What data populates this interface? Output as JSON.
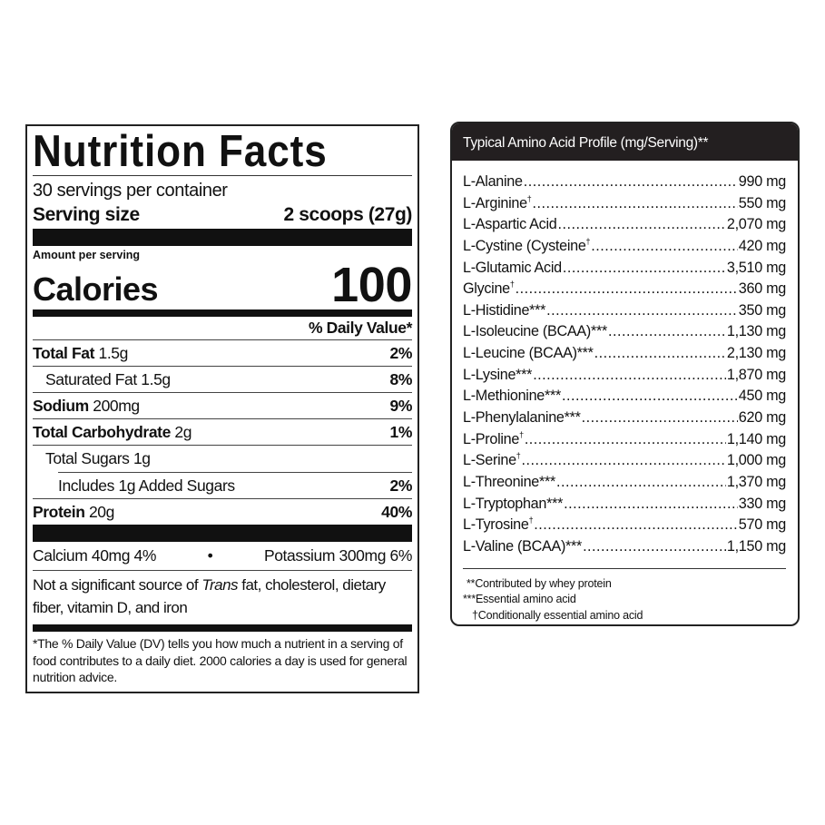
{
  "nutrition": {
    "title": "Nutrition Facts",
    "servings": "30 servings per container",
    "serving_size_label": "Serving size",
    "serving_size_value": "2 scoops (27g)",
    "amount_per_serving": "Amount per serving",
    "calories_label": "Calories",
    "calories_value": "100",
    "dv_header": "% Daily Value*",
    "rows": [
      {
        "name": "Total Fat",
        "amount": "1.5g",
        "dv": "2%"
      },
      {
        "name": "Saturated Fat 1.5g",
        "amount": "",
        "dv": "8%"
      },
      {
        "name": "Sodium",
        "amount": "200mg",
        "dv": "9%"
      },
      {
        "name": "Total Carbohydrate",
        "amount": "2g",
        "dv": "1%"
      },
      {
        "name": "Total Sugars 1g",
        "amount": "",
        "dv": ""
      },
      {
        "name": "Includes 1g Added Sugars",
        "amount": "",
        "dv": "2%"
      },
      {
        "name": "Protein",
        "amount": "20g",
        "dv": "40%"
      }
    ],
    "calcium": "Calcium 40mg 4%",
    "bullet": "•",
    "potassium": "Potassium 300mg 6%",
    "not_significant_pre": "Not a significant source of ",
    "not_significant_trans": "Trans",
    "not_significant_post": " fat, cholesterol, dietary fiber, vitamin D, and iron",
    "footnote": "*The % Daily Value (DV) tells you how much a nutrient in a serving of food contributes to a daily diet. 2000 calories a day is used for general nutrition advice."
  },
  "amino": {
    "title": "Typical Amino Acid Profile (mg/Serving)**",
    "items": [
      {
        "name": "L-Alanine",
        "mark": "",
        "value": "990 mg"
      },
      {
        "name": "L-Arginine",
        "mark": "†",
        "value": "550 mg"
      },
      {
        "name": "L-Aspartic Acid",
        "mark": "",
        "value": "2,070 mg"
      },
      {
        "name": "L-Cystine (Cysteine",
        "mark": "†",
        "value": "420 mg"
      },
      {
        "name": "L-Glutamic Acid",
        "mark": "",
        "value": "3,510 mg"
      },
      {
        "name": "Glycine",
        "mark": "†",
        "value": "360 mg"
      },
      {
        "name": "L-Histidine***",
        "mark": "",
        "value": "350 mg"
      },
      {
        "name": "L-Isoleucine (BCAA)***",
        "mark": "",
        "value": "1,130 mg"
      },
      {
        "name": "L-Leucine (BCAA)***",
        "mark": "",
        "value": "2,130 mg"
      },
      {
        "name": "L-Lysine***",
        "mark": "",
        "value": "1,870 mg"
      },
      {
        "name": "L-Methionine***",
        "mark": "",
        "value": "450 mg"
      },
      {
        "name": "L-Phenylalanine***",
        "mark": "",
        "value": "620 mg"
      },
      {
        "name": "L-Proline",
        "mark": "†",
        "value": "1,140 mg"
      },
      {
        "name": "L-Serine",
        "mark": "†",
        "value": "1,000 mg"
      },
      {
        "name": "L-Threonine***",
        "mark": "",
        "value": "1,370 mg"
      },
      {
        "name": "L-Tryptophan***",
        "mark": "",
        "value": "330 mg"
      },
      {
        "name": "L-Tyrosine",
        "mark": "†",
        "value": "570 mg"
      },
      {
        "name": "L-Valine (BCAA)***",
        "mark": "",
        "value": "1,150 mg"
      }
    ],
    "footnotes": [
      "**Contributed by whey protein",
      "***Essential amino acid",
      "†Conditionally essential amino acid"
    ]
  }
}
